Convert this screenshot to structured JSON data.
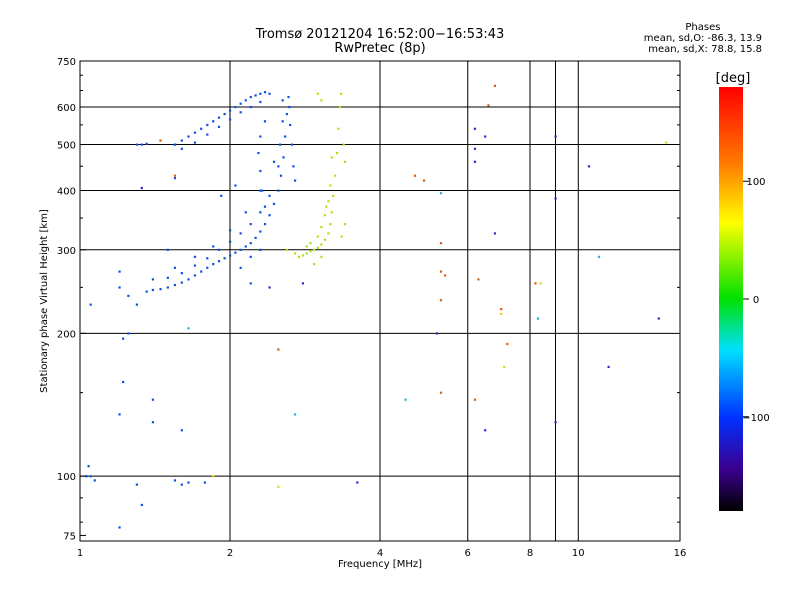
{
  "header": {
    "title_line1": "Tromsø 20121204 16:52:00−16:53:43",
    "title_line2": "RwPretec (8p)"
  },
  "phases": {
    "heading": "Phases",
    "line_o": "mean, sd,O: -86.3, 13.9",
    "line_x": "mean, sd,X: 78.8, 15.8"
  },
  "colorbar": {
    "unit_label": "[deg]",
    "range": [
      -180,
      180
    ],
    "ticks": [
      {
        "value": 100,
        "label": "100"
      },
      {
        "value": 0,
        "label": "0"
      },
      {
        "value": -100,
        "label": "−100"
      }
    ]
  },
  "chart_data": {
    "type": "scatter",
    "xlabel": "Frequency [MHz]",
    "ylabel": "Stationary phase Virtual Height [km]",
    "xscale": "log",
    "yscale": "log",
    "xlim": [
      1,
      16
    ],
    "ylim": [
      73,
      750
    ],
    "grid": true,
    "x_ticks": [
      {
        "value": 1,
        "label": "1"
      },
      {
        "value": 2,
        "label": "2"
      },
      {
        "value": 4,
        "label": "4"
      },
      {
        "value": 6,
        "label": "6"
      },
      {
        "value": 8,
        "label": "8"
      },
      {
        "value": 10,
        "label": "10"
      },
      {
        "value": 16,
        "label": "16"
      }
    ],
    "y_ticks": [
      {
        "value": 75,
        "label": "75"
      },
      {
        "value": 100,
        "label": "100"
      },
      {
        "value": 200,
        "label": "200"
      },
      {
        "value": 300,
        "label": "300"
      },
      {
        "value": 400,
        "label": "400"
      },
      {
        "value": 500,
        "label": "500"
      },
      {
        "value": 600,
        "label": "600"
      },
      {
        "value": 750,
        "label": "750"
      }
    ],
    "series": [
      {
        "mode": "O",
        "color": "#0f4fe6",
        "points": [
          [
            1.36,
            245
          ],
          [
            1.4,
            247
          ],
          [
            1.45,
            248
          ],
          [
            1.5,
            250
          ],
          [
            1.55,
            253
          ],
          [
            1.6,
            256
          ],
          [
            1.65,
            260
          ],
          [
            1.7,
            265
          ],
          [
            1.75,
            270
          ],
          [
            1.8,
            275
          ],
          [
            1.85,
            280
          ],
          [
            1.9,
            284
          ],
          [
            1.95,
            288
          ],
          [
            2.0,
            292
          ],
          [
            2.05,
            296
          ],
          [
            2.1,
            300
          ],
          [
            2.15,
            305
          ],
          [
            2.2,
            310
          ],
          [
            2.25,
            318
          ],
          [
            2.3,
            328
          ],
          [
            2.35,
            340
          ],
          [
            2.4,
            355
          ],
          [
            2.45,
            375
          ],
          [
            2.5,
            400
          ],
          [
            2.53,
            430
          ],
          [
            2.56,
            470
          ],
          [
            2.58,
            520
          ],
          [
            2.6,
            580
          ],
          [
            2.62,
            630
          ],
          [
            1.5,
            262
          ],
          [
            1.6,
            268
          ],
          [
            1.7,
            278
          ],
          [
            1.8,
            288
          ],
          [
            1.9,
            300
          ],
          [
            2.0,
            312
          ],
          [
            2.1,
            325
          ],
          [
            2.2,
            340
          ],
          [
            2.3,
            360
          ],
          [
            2.4,
            390
          ],
          [
            2.5,
            450
          ],
          [
            2.52,
            500
          ],
          [
            2.55,
            560
          ],
          [
            1.4,
            260
          ],
          [
            1.55,
            275
          ],
          [
            1.7,
            290
          ],
          [
            1.85,
            305
          ],
          [
            2.0,
            330
          ],
          [
            2.15,
            360
          ],
          [
            2.3,
            400
          ],
          [
            2.45,
            460
          ],
          [
            2.55,
            620
          ],
          [
            2.63,
            600
          ],
          [
            2.64,
            550
          ],
          [
            2.66,
            500
          ],
          [
            2.68,
            450
          ],
          [
            2.7,
            420
          ],
          [
            1.55,
            500
          ],
          [
            1.6,
            510
          ],
          [
            1.65,
            520
          ],
          [
            1.7,
            530
          ],
          [
            1.75,
            540
          ],
          [
            1.8,
            550
          ],
          [
            1.85,
            560
          ],
          [
            1.9,
            570
          ],
          [
            1.95,
            580
          ],
          [
            2.0,
            590
          ],
          [
            2.05,
            600
          ],
          [
            2.1,
            610
          ],
          [
            2.15,
            620
          ],
          [
            2.2,
            630
          ],
          [
            2.25,
            635
          ],
          [
            2.3,
            640
          ],
          [
            2.35,
            645
          ],
          [
            2.4,
            640
          ],
          [
            1.6,
            490
          ],
          [
            1.7,
            505
          ],
          [
            1.8,
            525
          ],
          [
            1.9,
            545
          ],
          [
            2.0,
            565
          ],
          [
            2.1,
            585
          ],
          [
            2.2,
            600
          ],
          [
            2.3,
            615
          ],
          [
            2.35,
            560
          ],
          [
            2.3,
            520
          ],
          [
            2.28,
            480
          ],
          [
            2.3,
            440
          ],
          [
            2.32,
            400
          ],
          [
            2.35,
            370
          ],
          [
            2.1,
            275
          ],
          [
            2.2,
            290
          ],
          [
            2.3,
            300
          ],
          [
            1.2,
            270
          ],
          [
            1.25,
            240
          ],
          [
            1.3,
            230
          ],
          [
            1.55,
            500
          ],
          [
            1.3,
            500
          ],
          [
            1.33,
            500
          ],
          [
            1.36,
            502
          ],
          [
            1.05,
            100
          ],
          [
            1.07,
            98
          ],
          [
            1.04,
            105
          ],
          [
            1.03,
            100
          ],
          [
            1.55,
            98
          ],
          [
            1.6,
            96
          ],
          [
            1.65,
            97
          ],
          [
            1.78,
            97
          ],
          [
            1.3,
            96
          ],
          [
            1.2,
            78
          ],
          [
            1.22,
            158
          ],
          [
            1.2,
            135
          ],
          [
            1.33,
            87
          ],
          [
            1.4,
            145
          ],
          [
            1.4,
            130
          ],
          [
            1.6,
            125
          ],
          [
            1.22,
            195
          ],
          [
            1.25,
            200
          ],
          [
            2.2,
            255
          ],
          [
            1.5,
            300
          ],
          [
            1.55,
            425
          ],
          [
            1.92,
            390
          ],
          [
            2.05,
            410
          ],
          [
            1.05,
            230
          ],
          [
            1.2,
            250
          ]
        ]
      },
      {
        "mode": "X",
        "color": "#a8e61a",
        "points": [
          [
            2.75,
            290
          ],
          [
            2.8,
            292
          ],
          [
            2.85,
            295
          ],
          [
            2.9,
            298
          ],
          [
            2.95,
            300
          ],
          [
            3.0,
            303
          ],
          [
            3.05,
            308
          ],
          [
            3.1,
            315
          ],
          [
            3.15,
            325
          ],
          [
            3.18,
            340
          ],
          [
            3.2,
            360
          ],
          [
            3.22,
            390
          ],
          [
            3.25,
            430
          ],
          [
            3.28,
            480
          ],
          [
            3.3,
            540
          ],
          [
            3.32,
            600
          ],
          [
            3.34,
            640
          ],
          [
            2.9,
            310
          ],
          [
            3.0,
            320
          ],
          [
            3.05,
            335
          ],
          [
            3.1,
            355
          ],
          [
            3.15,
            380
          ],
          [
            3.18,
            410
          ],
          [
            2.7,
            295
          ],
          [
            2.6,
            300
          ],
          [
            2.95,
            280
          ],
          [
            3.05,
            290
          ],
          [
            3.4,
            340
          ],
          [
            3.35,
            320
          ],
          [
            3.0,
            640
          ],
          [
            3.05,
            620
          ],
          [
            3.38,
            500
          ],
          [
            3.4,
            460
          ],
          [
            2.85,
            305
          ],
          [
            3.12,
            370
          ],
          [
            3.2,
            470
          ]
        ]
      },
      {
        "mode": "scattered",
        "color": "#e05a10",
        "points": [
          [
            5.3,
            310
          ],
          [
            5.3,
            270
          ],
          [
            5.4,
            265
          ],
          [
            5.3,
            235
          ],
          [
            5.3,
            150
          ],
          [
            6.3,
            260
          ],
          [
            6.6,
            605
          ],
          [
            6.8,
            665
          ],
          [
            7.0,
            225
          ],
          [
            7.2,
            190
          ],
          [
            8.2,
            255
          ],
          [
            6.2,
            145
          ],
          [
            2.5,
            185
          ],
          [
            4.7,
            430
          ],
          [
            4.9,
            420
          ],
          [
            1.55,
            430
          ],
          [
            1.45,
            510
          ]
        ]
      },
      {
        "mode": "scattered",
        "color": "#2d2dc8",
        "points": [
          [
            6.2,
            540
          ],
          [
            6.2,
            490
          ],
          [
            6.2,
            460
          ],
          [
            6.5,
            520
          ],
          [
            6.8,
            325
          ],
          [
            6.5,
            125
          ],
          [
            9.0,
            520
          ],
          [
            9.0,
            385
          ],
          [
            9.0,
            130
          ],
          [
            10.5,
            450
          ],
          [
            11.5,
            170
          ],
          [
            14.5,
            215
          ],
          [
            3.6,
            97
          ],
          [
            5.2,
            200
          ],
          [
            2.4,
            250
          ],
          [
            2.8,
            255
          ],
          [
            1.33,
            405
          ]
        ]
      },
      {
        "mode": "scattered",
        "color": "#20b4d8",
        "points": [
          [
            4.5,
            145
          ],
          [
            5.3,
            395
          ],
          [
            8.3,
            215
          ],
          [
            11.0,
            290
          ],
          [
            1.65,
            205
          ],
          [
            2.7,
            135
          ]
        ]
      },
      {
        "mode": "scattered",
        "color": "#e6d21a",
        "points": [
          [
            7.1,
            170
          ],
          [
            7.0,
            220
          ],
          [
            15.0,
            505
          ],
          [
            2.5,
            95
          ],
          [
            1.85,
            100
          ],
          [
            8.4,
            255
          ]
        ]
      }
    ]
  }
}
